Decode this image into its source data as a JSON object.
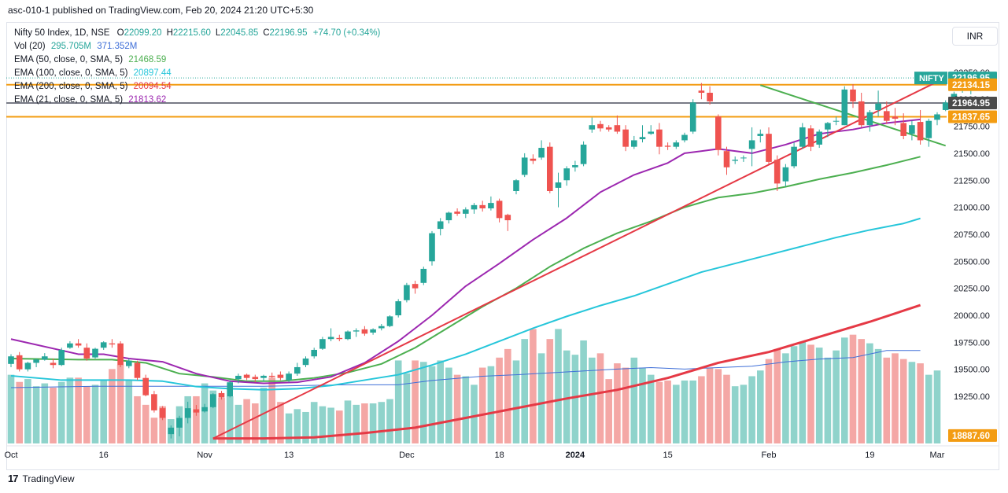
{
  "header": {
    "published": "asc-010-1 published on TradingView.com, Feb 20, 2024 21:20 UTC+5:30"
  },
  "currency": "INR",
  "footer": {
    "brand": "TradingView"
  },
  "legend": {
    "title": "Nifty 50 Index, 1D, NSE",
    "ohlc": [
      {
        "k": "O",
        "v": "22099.20"
      },
      {
        "k": "H",
        "v": "22215.60"
      },
      {
        "k": "L",
        "v": "22045.85"
      },
      {
        "k": "C",
        "v": "22196.95"
      }
    ],
    "change": "+74.70 (+0.34%)",
    "vol_label": "Vol (20)",
    "vol_values": [
      "295.705M",
      "371.352M"
    ],
    "emas": [
      {
        "label": "EMA (50, close, 0, SMA, 5)",
        "value": "21468.59",
        "color": "#4caf50"
      },
      {
        "label": "EMA (100, close, 0, SMA, 5)",
        "value": "20897.44",
        "color": "#26c6da"
      },
      {
        "label": "EMA (200, close, 0, SMA, 5)",
        "value": "20094.54",
        "color": "#e53945"
      },
      {
        "label": "EMA (21, close, 0, SMA, 5)",
        "value": "21813.62",
        "color": "#9c27b0"
      }
    ]
  },
  "colors": {
    "up": "#26a69a",
    "down": "#ef5350",
    "ema50": "#4caf50",
    "ema100": "#26c6da",
    "ema200": "#e53945",
    "ema21": "#9c27b0",
    "hline_orange": "#f39c12",
    "hline_gray": "#787b86",
    "trend_red": "#e53945",
    "trend_green": "#4caf50",
    "vol_ma": "#3f6fd8"
  },
  "chart_data": {
    "type": "candlestick",
    "symbol": "NIFTY",
    "yticks": [
      "22250.00",
      "22000.00",
      "21750.00",
      "21500.00",
      "21250.00",
      "21000.00",
      "20750.00",
      "20500.00",
      "20250.00",
      "20000.00",
      "19750.00",
      "19500.00",
      "19250.00"
    ],
    "yrange": [
      18850,
      22300
    ],
    "xticks": [
      {
        "label": "Oct",
        "i": 0
      },
      {
        "label": "16",
        "i": 11
      },
      {
        "label": "Nov",
        "i": 23
      },
      {
        "label": "13",
        "i": 33
      },
      {
        "label": "Dec",
        "i": 47
      },
      {
        "label": "18",
        "i": 58
      },
      {
        "label": "2024",
        "i": 67
      },
      {
        "label": "15",
        "i": 78
      },
      {
        "label": "Feb",
        "i": 90
      },
      {
        "label": "19",
        "i": 102
      },
      {
        "label": "Mar",
        "i": 110
      }
    ],
    "price_labels": [
      {
        "text": "22196.95",
        "prefix": "NIFTY",
        "color": "#26a69a",
        "y": 22196.95
      },
      {
        "text": "22134.15",
        "color": "#f39c12",
        "y": 22134.15
      },
      {
        "text": "21964.95",
        "color": "#4a4a4a",
        "y": 21964.95
      },
      {
        "text": "21837.65",
        "color": "#f39c12",
        "y": 21837.65
      },
      {
        "text": "18887.60",
        "color": "#f39c12",
        "y": 18887.6
      }
    ],
    "hlines": [
      {
        "y": 22134.15,
        "color": "#f39c12"
      },
      {
        "y": 21964.95,
        "color": "#787b86"
      },
      {
        "y": 21837.65,
        "color": "#f39c12"
      }
    ],
    "trendlines": [
      {
        "x1": 24,
        "y1": 18860,
        "x2": 111,
        "y2": 22200,
        "color": "#e53945"
      },
      {
        "x1": 89,
        "y1": 22130,
        "x2": 111,
        "y2": 21570,
        "color": "#4caf50"
      }
    ],
    "candles": [
      [
        19550,
        19640,
        19520,
        19620
      ],
      [
        19630,
        19660,
        19480,
        19500
      ],
      [
        19500,
        19570,
        19480,
        19560
      ],
      [
        19560,
        19600,
        19520,
        19590
      ],
      [
        19590,
        19650,
        19580,
        19620
      ],
      [
        19560,
        19600,
        19510,
        19540
      ],
      [
        19540,
        19700,
        19530,
        19680
      ],
      [
        19700,
        19760,
        19690,
        19740
      ],
      [
        19740,
        19780,
        19700,
        19720
      ],
      [
        19700,
        19740,
        19580,
        19600
      ],
      [
        19610,
        19700,
        19600,
        19690
      ],
      [
        19700,
        19760,
        19680,
        19750
      ],
      [
        19740,
        19780,
        19700,
        19730
      ],
      [
        19740,
        19760,
        19520,
        19540
      ],
      [
        19530,
        19600,
        19510,
        19580
      ],
      [
        19560,
        19580,
        19400,
        19420
      ],
      [
        19420,
        19450,
        19250,
        19260
      ],
      [
        19270,
        19300,
        19100,
        19120
      ],
      [
        19140,
        19160,
        19030,
        19050
      ],
      [
        18900,
        18980,
        18860,
        18960
      ],
      [
        18960,
        19070,
        18880,
        19050
      ],
      [
        19050,
        19200,
        19000,
        19140
      ],
      [
        19130,
        19170,
        19070,
        19100
      ],
      [
        19110,
        19180,
        19100,
        19150
      ],
      [
        19150,
        19280,
        19140,
        19270
      ],
      [
        19280,
        19300,
        19220,
        19240
      ],
      [
        19250,
        19400,
        19240,
        19380
      ],
      [
        19410,
        19460,
        19370,
        19440
      ],
      [
        19450,
        19460,
        19400,
        19420
      ],
      [
        19430,
        19450,
        19380,
        19410
      ],
      [
        19420,
        19450,
        19390,
        19440
      ],
      [
        19440,
        19470,
        19420,
        19430
      ],
      [
        19450,
        19480,
        19400,
        19420
      ],
      [
        19400,
        19480,
        19380,
        19460
      ],
      [
        19460,
        19560,
        19440,
        19520
      ],
      [
        19540,
        19620,
        19520,
        19600
      ],
      [
        19620,
        19700,
        19600,
        19680
      ],
      [
        19690,
        19800,
        19680,
        19780
      ],
      [
        19780,
        19880,
        19760,
        19800
      ],
      [
        19790,
        19820,
        19760,
        19780
      ],
      [
        19780,
        19860,
        19770,
        19850
      ],
      [
        19850,
        19880,
        19800,
        19860
      ],
      [
        19870,
        19900,
        19810,
        19830
      ],
      [
        19840,
        19880,
        19820,
        19870
      ],
      [
        19880,
        19920,
        19860,
        19900
      ],
      [
        19900,
        20000,
        19890,
        19990
      ],
      [
        20000,
        20150,
        19980,
        20130
      ],
      [
        20140,
        20300,
        20120,
        20280
      ],
      [
        20290,
        20320,
        20200,
        20250
      ],
      [
        20300,
        20450,
        20280,
        20430
      ],
      [
        20500,
        20780,
        20460,
        20760
      ],
      [
        20800,
        20900,
        20740,
        20870
      ],
      [
        20880,
        20960,
        20850,
        20950
      ],
      [
        20960,
        20990,
        20920,
        20940
      ],
      [
        20940,
        21000,
        20900,
        20980
      ],
      [
        20980,
        21040,
        20940,
        21020
      ],
      [
        21020,
        21060,
        20960,
        20990
      ],
      [
        20990,
        21100,
        20970,
        21040
      ],
      [
        21060,
        21080,
        20860,
        20900
      ],
      [
        20930,
        20940,
        20780,
        20880
      ],
      [
        21150,
        21260,
        21120,
        21250
      ],
      [
        21300,
        21500,
        21280,
        21460
      ],
      [
        21450,
        21490,
        21400,
        21430
      ],
      [
        21460,
        21620,
        21440,
        21550
      ],
      [
        21560,
        21600,
        21130,
        21150
      ],
      [
        21180,
        21320,
        21000,
        21230
      ],
      [
        21250,
        21380,
        21200,
        21360
      ],
      [
        21370,
        21430,
        21330,
        21390
      ],
      [
        21400,
        21610,
        21380,
        21580
      ],
      [
        21720,
        21830,
        21690,
        21760
      ],
      [
        21770,
        21800,
        21700,
        21730
      ],
      [
        21740,
        21760,
        21700,
        21720
      ],
      [
        21760,
        21850,
        21680,
        21700
      ],
      [
        21720,
        21760,
        21520,
        21560
      ],
      [
        21560,
        21660,
        21540,
        21620
      ],
      [
        21630,
        21760,
        21600,
        21650
      ],
      [
        21680,
        21760,
        21670,
        21700
      ],
      [
        21720,
        21780,
        21490,
        21560
      ],
      [
        21570,
        21600,
        21530,
        21560
      ],
      [
        21560,
        21620,
        21540,
        21600
      ],
      [
        21620,
        21690,
        21600,
        21670
      ],
      [
        21700,
        22000,
        21680,
        21970
      ],
      [
        22080,
        22150,
        22000,
        22060
      ],
      [
        22060,
        22120,
        21950,
        21980
      ],
      [
        21840,
        21860,
        21480,
        21530
      ],
      [
        21520,
        21560,
        21300,
        21370
      ],
      [
        21430,
        21470,
        21400,
        21440
      ],
      [
        21460,
        21480,
        21420,
        21460
      ],
      [
        21540,
        21740,
        21380,
        21620
      ],
      [
        21660,
        21720,
        21600,
        21680
      ],
      [
        21680,
        21740,
        21400,
        21420
      ],
      [
        21440,
        21480,
        21150,
        21220
      ],
      [
        21240,
        21400,
        21190,
        21370
      ],
      [
        21380,
        21600,
        21360,
        21560
      ],
      [
        21560,
        21780,
        21540,
        21740
      ],
      [
        21730,
        21760,
        21520,
        21560
      ],
      [
        21580,
        21720,
        21550,
        21700
      ],
      [
        21720,
        21790,
        21650,
        21780
      ],
      [
        21800,
        21840,
        21760,
        21800
      ],
      [
        21760,
        22120,
        21760,
        22090
      ],
      [
        22090,
        22140,
        21920,
        21980
      ],
      [
        21980,
        22060,
        21740,
        21760
      ],
      [
        21760,
        21900,
        21700,
        21880
      ],
      [
        21900,
        22080,
        21840,
        21960
      ],
      [
        21890,
        21980,
        21770,
        21800
      ],
      [
        21840,
        21920,
        21760,
        21820
      ],
      [
        21780,
        21870,
        21630,
        21660
      ],
      [
        21680,
        21800,
        21620,
        21760
      ],
      [
        21790,
        21900,
        21580,
        21620
      ],
      [
        21640,
        21820,
        21560,
        21800
      ],
      [
        21810,
        21880,
        21760,
        21860
      ],
      [
        21900,
        21990,
        21890,
        21970
      ],
      [
        22000,
        22070,
        21960,
        22050
      ],
      [
        22080,
        22160,
        22060,
        22130
      ],
      [
        22099,
        22216,
        22046,
        22197
      ]
    ],
    "volume": [
      0.48,
      0.43,
      0.45,
      0.4,
      0.42,
      0.39,
      0.43,
      0.46,
      0.46,
      0.4,
      0.41,
      0.44,
      0.52,
      0.55,
      0.44,
      0.33,
      0.27,
      0.18,
      0.26,
      0.17,
      0.26,
      0.33,
      0.33,
      0.42,
      0.37,
      0.32,
      0.33,
      0.27,
      0.31,
      0.28,
      0.39,
      0.46,
      0.29,
      0.21,
      0.24,
      0.22,
      0.29,
      0.26,
      0.25,
      0.23,
      0.3,
      0.27,
      0.28,
      0.28,
      0.29,
      0.31,
      0.58,
      0.49,
      0.58,
      0.57,
      0.54,
      0.58,
      0.53,
      0.48,
      0.47,
      0.41,
      0.53,
      0.54,
      0.6,
      0.66,
      0.58,
      0.73,
      0.8,
      0.63,
      0.73,
      0.8,
      0.65,
      0.62,
      0.72,
      0.6,
      0.63,
      0.45,
      0.56,
      0.53,
      0.6,
      0.53,
      0.48,
      0.43,
      0.44,
      0.41,
      0.44,
      0.44,
      0.47,
      0.53,
      0.52,
      0.48,
      0.4,
      0.41,
      0.47,
      0.51,
      0.59,
      0.66,
      0.63,
      0.68,
      0.71,
      0.69,
      0.67,
      0.6,
      0.65,
      0.74,
      0.76,
      0.73,
      0.7,
      0.66,
      0.6,
      0.63,
      0.59,
      0.57,
      0.56,
      0.48,
      0.51
    ],
    "ema21": [
      [
        0,
        19780
      ],
      [
        8,
        19640
      ],
      [
        11,
        19640
      ],
      [
        14,
        19600
      ],
      [
        18,
        19570
      ],
      [
        22,
        19460
      ],
      [
        26,
        19390
      ],
      [
        30,
        19370
      ],
      [
        34,
        19380
      ],
      [
        38,
        19430
      ],
      [
        42,
        19560
      ],
      [
        46,
        19760
      ],
      [
        50,
        20000
      ],
      [
        54,
        20270
      ],
      [
        58,
        20480
      ],
      [
        62,
        20700
      ],
      [
        66,
        20900
      ],
      [
        70,
        21140
      ],
      [
        74,
        21300
      ],
      [
        78,
        21410
      ],
      [
        80,
        21500
      ],
      [
        84,
        21540
      ],
      [
        88,
        21500
      ],
      [
        92,
        21580
      ],
      [
        96,
        21680
      ],
      [
        100,
        21720
      ],
      [
        104,
        21780
      ],
      [
        108,
        21813
      ]
    ],
    "ema50": [
      [
        0,
        19600
      ],
      [
        8,
        19590
      ],
      [
        12,
        19590
      ],
      [
        16,
        19560
      ],
      [
        20,
        19460
      ],
      [
        24,
        19430
      ],
      [
        28,
        19390
      ],
      [
        32,
        19390
      ],
      [
        36,
        19420
      ],
      [
        40,
        19470
      ],
      [
        44,
        19550
      ],
      [
        48,
        19700
      ],
      [
        52,
        19890
      ],
      [
        56,
        20080
      ],
      [
        60,
        20250
      ],
      [
        64,
        20450
      ],
      [
        68,
        20620
      ],
      [
        72,
        20760
      ],
      [
        76,
        20870
      ],
      [
        80,
        21000
      ],
      [
        84,
        21090
      ],
      [
        88,
        21130
      ],
      [
        92,
        21190
      ],
      [
        96,
        21260
      ],
      [
        100,
        21320
      ],
      [
        104,
        21390
      ],
      [
        108,
        21468
      ]
    ],
    "ema100": [
      [
        0,
        19440
      ],
      [
        6,
        19400
      ],
      [
        10,
        19400
      ],
      [
        14,
        19400
      ],
      [
        18,
        19390
      ],
      [
        22,
        19340
      ],
      [
        26,
        19320
      ],
      [
        30,
        19310
      ],
      [
        34,
        19320
      ],
      [
        38,
        19350
      ],
      [
        42,
        19400
      ],
      [
        46,
        19450
      ],
      [
        50,
        19540
      ],
      [
        54,
        19640
      ],
      [
        58,
        19760
      ],
      [
        62,
        19880
      ],
      [
        66,
        19990
      ],
      [
        70,
        20090
      ],
      [
        74,
        20180
      ],
      [
        78,
        20290
      ],
      [
        82,
        20400
      ],
      [
        86,
        20480
      ],
      [
        90,
        20560
      ],
      [
        94,
        20640
      ],
      [
        98,
        20720
      ],
      [
        102,
        20790
      ],
      [
        106,
        20850
      ],
      [
        108,
        20897
      ]
    ],
    "ema200": [
      [
        24,
        18860
      ],
      [
        30,
        18860
      ],
      [
        36,
        18870
      ],
      [
        42,
        18910
      ],
      [
        48,
        18960
      ],
      [
        54,
        19050
      ],
      [
        60,
        19140
      ],
      [
        66,
        19230
      ],
      [
        72,
        19310
      ],
      [
        78,
        19420
      ],
      [
        84,
        19560
      ],
      [
        90,
        19660
      ],
      [
        96,
        19800
      ],
      [
        102,
        19940
      ],
      [
        108,
        20094
      ]
    ],
    "vol_ma": [
      [
        0,
        0.39
      ],
      [
        10,
        0.4
      ],
      [
        20,
        0.4
      ],
      [
        30,
        0.4
      ],
      [
        40,
        0.41
      ],
      [
        46,
        0.41
      ],
      [
        50,
        0.44
      ],
      [
        56,
        0.47
      ],
      [
        60,
        0.48
      ],
      [
        66,
        0.5
      ],
      [
        72,
        0.52
      ],
      [
        76,
        0.53
      ],
      [
        80,
        0.52
      ],
      [
        84,
        0.53
      ],
      [
        88,
        0.54
      ],
      [
        92,
        0.57
      ],
      [
        96,
        0.59
      ],
      [
        100,
        0.6
      ],
      [
        104,
        0.65
      ],
      [
        108,
        0.65
      ]
    ]
  }
}
